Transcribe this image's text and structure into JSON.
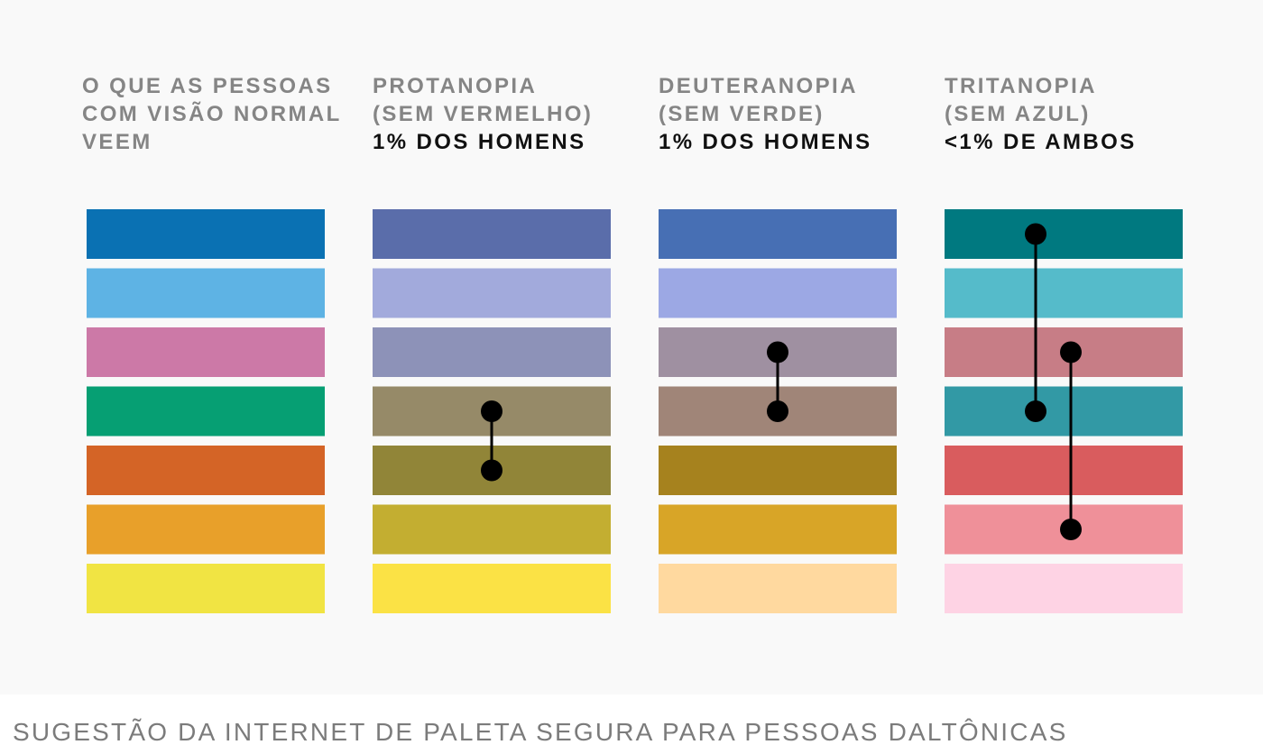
{
  "columns": [
    {
      "lines": [
        "O QUE AS PESSOAS",
        "COM VISÃO NORMAL",
        "VEEM"
      ],
      "emphasis": "",
      "colors": [
        "#0a71b3",
        "#5eb3e4",
        "#cc79a7",
        "#069f73",
        "#d46426",
        "#e8a02a",
        "#f1e443"
      ],
      "links": []
    },
    {
      "lines": [
        "PROTANOPIA",
        "(SEM VERMELHO)"
      ],
      "emphasis": "1% DOS HOMENS",
      "colors": [
        "#5a6daa",
        "#a2aadc",
        "#8d92b8",
        "#968a68",
        "#918538",
        "#c3ae31",
        "#fbe245"
      ],
      "links": [
        [
          3,
          4
        ]
      ]
    },
    {
      "lines": [
        "DEUTERANOPIA",
        "(SEM VERDE)"
      ],
      "emphasis": "1% DOS HOMENS",
      "colors": [
        "#476fb4",
        "#9ca8e4",
        "#9f90a1",
        "#a08578",
        "#a6821e",
        "#d8a527",
        "#ffd99f"
      ],
      "links": [
        [
          2,
          3
        ]
      ]
    },
    {
      "lines": [
        "TRITANOPIA",
        "(SEM AZUL)"
      ],
      "emphasis": "<1% DE AMBOS",
      "colors": [
        "#007980",
        "#55bbca",
        "#c77d86",
        "#3299a5",
        "#d95c5e",
        "#ef9099",
        "#fed3e4"
      ],
      "links": [
        [
          0,
          3
        ],
        [
          2,
          5
        ]
      ]
    }
  ],
  "caption": "SUGESTÃO DA INTERNET DE PALETA SEGURA PARA PESSOAS DALTÔNICAS"
}
